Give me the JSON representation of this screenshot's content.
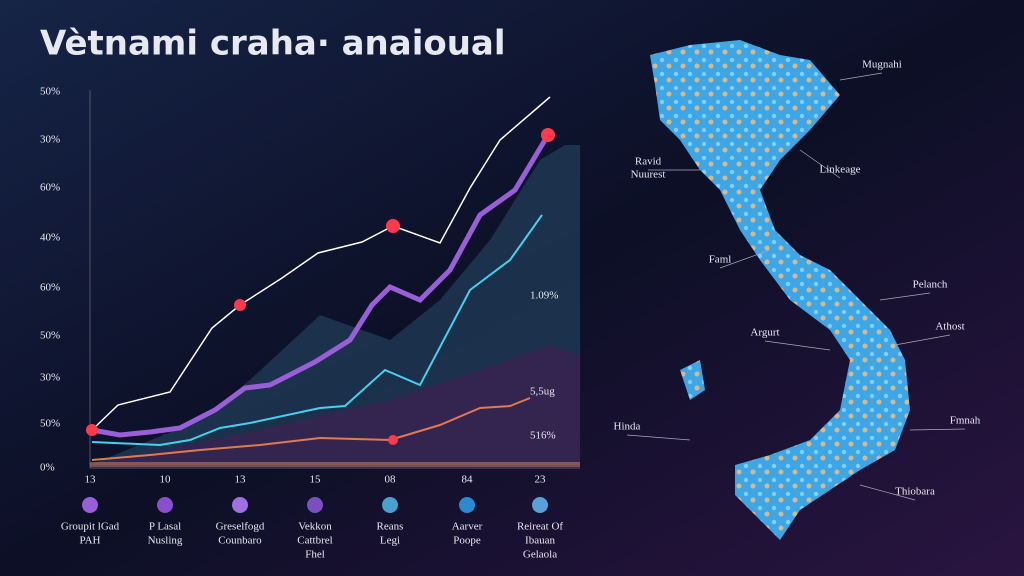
{
  "header": {
    "title": "Vètnami craha· anaioual"
  },
  "chart": {
    "y_labels": [
      "50%",
      "30%",
      "60%",
      "40%",
      "60%",
      "50%",
      "30%",
      "50%",
      "0%"
    ],
    "x_labels": [
      "13",
      "10",
      "13",
      "15",
      "08",
      "84",
      "23"
    ],
    "annotations": [
      "1.09%",
      "5,5ug",
      "516%"
    ],
    "legend": [
      [
        "Groupit lGad",
        "PAH"
      ],
      [
        "P Lasal",
        "Nusling"
      ],
      [
        "Greselfogd",
        "Counbaro"
      ],
      [
        "Vekkon",
        "Cattbrel",
        "Fhel"
      ],
      [
        "Reans",
        "Legi"
      ],
      [
        "Aarver",
        "Poope"
      ],
      [
        "Reireat Of",
        "Ibauan",
        "Gelaola"
      ]
    ]
  },
  "map": {
    "labels": [
      [
        "Mugnahi"
      ],
      [
        "Ravid",
        "Nuurest"
      ],
      [
        "Linkeage"
      ],
      [
        "Faml"
      ],
      [
        "Pelanch"
      ],
      [
        "Argurt"
      ],
      [
        "Athost"
      ],
      [
        "Fmnah"
      ],
      [
        "Hinda"
      ],
      [
        "Thiobara"
      ]
    ]
  }
}
